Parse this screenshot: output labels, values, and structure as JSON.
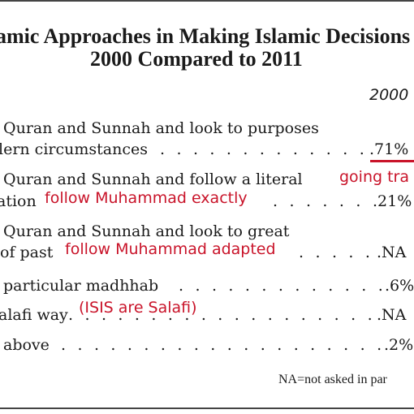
{
  "title": {
    "line1": "amic Approaches in Making Islamic Decisions",
    "line2": "2000 Compared to 2011"
  },
  "column_header": "2000",
  "rows": [
    {
      "line1": "Quran and Sunnah and look to purposes",
      "line2": "lern circumstances",
      "dots": ". . . . . . . . . . . . . . . .",
      "value": ".71%"
    },
    {
      "line1": "Quran and Sunnah and follow a literal",
      "line2": "ation",
      "dots": ". . . . . . . . . . . . .",
      "value": ".21%"
    },
    {
      "line1": "Quran and Sunnah and look to great",
      "line2": "of past",
      "dots": ". . . . . . . . . . . . . . . . . . .",
      "value": ".NA"
    },
    {
      "line1": "particular madhhab",
      "dots": ". . . . . . . . . . . . . . . . . .",
      "value": ".6%"
    },
    {
      "line1": "alafi way",
      "dots": ". . . . . . . . . . . . . . . . . . . . .",
      "value": ".NA"
    },
    {
      "line1": "above",
      "dots": ". . . . . . . . . . . . . . . . . . . . . . .",
      "value": ".2%"
    }
  ],
  "annotations": {
    "going": "going tra",
    "follow_exactly": "follow Muhammad exactly",
    "follow_adapted": "follow Muhammad adapted",
    "isis": "(ISIS are Salafi)",
    "accent_color": "#c9142a"
  },
  "footnote": "NA=not asked in par"
}
